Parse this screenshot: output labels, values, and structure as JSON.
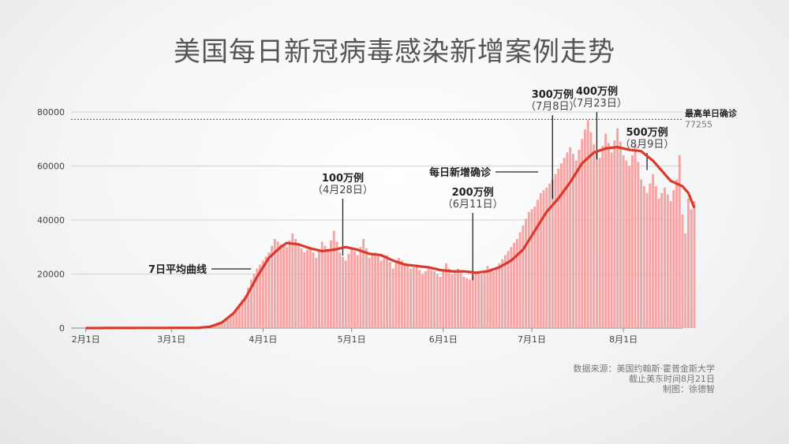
{
  "title": "美国每日新冠病毒感染新增案例走势",
  "source": {
    "line1": "数据来源：美国约翰斯·霍普金斯大学",
    "line2": "截止美东时间8月21日",
    "line3": "制图：徐德智"
  },
  "colors": {
    "bars": "#f6a3a3",
    "line": "#d93a2b",
    "title": "#555555"
  },
  "chart_data": {
    "type": "bar",
    "y_ticks": [
      0,
      20000,
      40000,
      60000,
      80000
    ],
    "ylim": [
      0,
      80000
    ],
    "x_ticks": [
      {
        "label": "2月1日",
        "day": 0
      },
      {
        "label": "3月1日",
        "day": 29
      },
      {
        "label": "4月1日",
        "day": 60
      },
      {
        "label": "5月1日",
        "day": 90
      },
      {
        "label": "6月1日",
        "day": 121
      },
      {
        "label": "7月1日",
        "day": 151
      },
      {
        "label": "8月1日",
        "day": 182
      }
    ],
    "x_range_days": [
      -5,
      202
    ],
    "daily_anchors": [
      [
        0,
        0
      ],
      [
        35,
        10
      ],
      [
        38,
        300
      ],
      [
        42,
        800
      ],
      [
        45,
        1500
      ],
      [
        48,
        4000
      ],
      [
        50,
        5500
      ],
      [
        52,
        9000
      ],
      [
        54,
        12000
      ],
      [
        56,
        18000
      ],
      [
        58,
        22000
      ],
      [
        60,
        25000
      ],
      [
        62,
        28000
      ],
      [
        64,
        33000
      ],
      [
        66,
        31000
      ],
      [
        68,
        30000
      ],
      [
        70,
        35000
      ],
      [
        72,
        31000
      ],
      [
        74,
        28000
      ],
      [
        76,
        30000
      ],
      [
        78,
        26000
      ],
      [
        80,
        32000
      ],
      [
        82,
        29000
      ],
      [
        84,
        36000
      ],
      [
        86,
        28000
      ],
      [
        88,
        25000
      ],
      [
        90,
        30000
      ],
      [
        92,
        27000
      ],
      [
        94,
        33000
      ],
      [
        96,
        26000
      ],
      [
        98,
        28000
      ],
      [
        100,
        25000
      ],
      [
        102,
        27000
      ],
      [
        104,
        22000
      ],
      [
        106,
        26000
      ],
      [
        108,
        24000
      ],
      [
        110,
        22000
      ],
      [
        112,
        23000
      ],
      [
        114,
        20000
      ],
      [
        116,
        22000
      ],
      [
        118,
        21000
      ],
      [
        120,
        19000
      ],
      [
        122,
        24000
      ],
      [
        124,
        20000
      ],
      [
        126,
        22000
      ],
      [
        128,
        19000
      ],
      [
        130,
        18000
      ],
      [
        132,
        21000
      ],
      [
        134,
        20000
      ],
      [
        136,
        23000
      ],
      [
        138,
        21000
      ],
      [
        140,
        24000
      ],
      [
        142,
        27000
      ],
      [
        144,
        30000
      ],
      [
        146,
        33000
      ],
      [
        148,
        38000
      ],
      [
        150,
        43000
      ],
      [
        152,
        45000
      ],
      [
        154,
        50000
      ],
      [
        156,
        52000
      ],
      [
        158,
        55000
      ],
      [
        160,
        59000
      ],
      [
        162,
        63000
      ],
      [
        164,
        67000
      ],
      [
        166,
        62000
      ],
      [
        168,
        70000
      ],
      [
        170,
        77000
      ],
      [
        172,
        68000
      ],
      [
        174,
        63000
      ],
      [
        176,
        72000
      ],
      [
        178,
        65000
      ],
      [
        180,
        74000
      ],
      [
        182,
        64000
      ],
      [
        184,
        60000
      ],
      [
        186,
        68000
      ],
      [
        188,
        55000
      ],
      [
        190,
        50000
      ],
      [
        192,
        57000
      ],
      [
        194,
        48000
      ],
      [
        196,
        52000
      ],
      [
        198,
        47000
      ],
      [
        200,
        55000
      ],
      [
        201,
        64000
      ],
      [
        202,
        42000
      ],
      [
        203,
        35000
      ],
      [
        204,
        48000
      ],
      [
        205,
        44000
      ],
      [
        206,
        47000
      ]
    ],
    "avg_anchors": [
      [
        0,
        0
      ],
      [
        38,
        100
      ],
      [
        42,
        500
      ],
      [
        46,
        2000
      ],
      [
        50,
        5500
      ],
      [
        54,
        11000
      ],
      [
        58,
        19000
      ],
      [
        62,
        26000
      ],
      [
        66,
        30000
      ],
      [
        68,
        31500
      ],
      [
        72,
        31000
      ],
      [
        76,
        29500
      ],
      [
        80,
        28500
      ],
      [
        84,
        29000
      ],
      [
        88,
        30000
      ],
      [
        92,
        29000
      ],
      [
        96,
        27500
      ],
      [
        100,
        27000
      ],
      [
        104,
        25000
      ],
      [
        108,
        23500
      ],
      [
        112,
        23000
      ],
      [
        116,
        22500
      ],
      [
        120,
        21500
      ],
      [
        124,
        21000
      ],
      [
        128,
        21000
      ],
      [
        132,
        20500
      ],
      [
        136,
        21000
      ],
      [
        140,
        22500
      ],
      [
        144,
        25000
      ],
      [
        148,
        29000
      ],
      [
        152,
        36000
      ],
      [
        156,
        43000
      ],
      [
        160,
        48000
      ],
      [
        164,
        54000
      ],
      [
        168,
        61000
      ],
      [
        172,
        65000
      ],
      [
        176,
        66500
      ],
      [
        180,
        67000
      ],
      [
        184,
        66000
      ],
      [
        188,
        65500
      ],
      [
        192,
        62000
      ],
      [
        196,
        57000
      ],
      [
        198,
        54500
      ],
      [
        200,
        53500
      ],
      [
        202,
        52500
      ],
      [
        204,
        50000
      ],
      [
        206,
        44500
      ]
    ],
    "peak_line": {
      "label": "最高单日确诊",
      "value": 77255
    },
    "annotations": [
      {
        "label": "100万例",
        "date": "（4月28日）",
        "day": 87
      },
      {
        "label": "200万例",
        "date": "（6月11日）",
        "day": 131
      },
      {
        "label": "300万例",
        "date": "（7月8日）",
        "day": 158
      },
      {
        "label": "400万例",
        "date": "（7月23日）",
        "day": 173
      },
      {
        "label": "500万例",
        "date": "（8月9日）",
        "day": 190
      }
    ],
    "line_labels": {
      "avg": "7日平均曲线",
      "daily": "每日新增确诊"
    }
  }
}
